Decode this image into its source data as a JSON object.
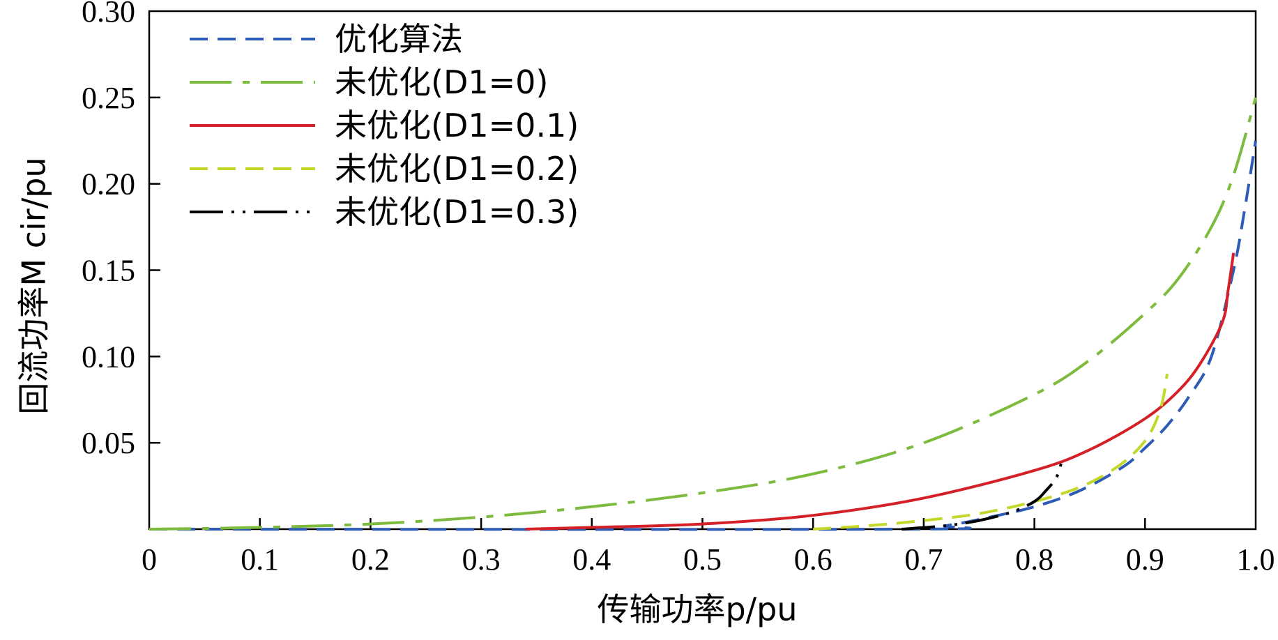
{
  "chart_data": {
    "type": "line",
    "xlabel": "传输功率p/pu",
    "ylabel": "回流功率M cir/pu",
    "xlim": [
      0,
      1.0
    ],
    "ylim": [
      0,
      0.3
    ],
    "x_ticks": [
      "0",
      "0.1",
      "0.2",
      "0.3",
      "0.4",
      "0.5",
      "0.6",
      "0.7",
      "0.8",
      "0.9",
      "1.0"
    ],
    "y_ticks": [
      "0.05",
      "0.10",
      "0.15",
      "0.20",
      "0.25",
      "0.30"
    ],
    "grid": false,
    "legend_position": "top-left",
    "series": [
      {
        "name": "优化算法",
        "color": "#2e5bb5",
        "dash": "dashed",
        "x": [
          0,
          0.68,
          0.72,
          0.76,
          0.8,
          0.84,
          0.88,
          0.9,
          0.92,
          0.94,
          0.96,
          0.98,
          0.99,
          1.0
        ],
        "y": [
          0,
          0,
          0.002,
          0.007,
          0.013,
          0.022,
          0.036,
          0.047,
          0.06,
          0.077,
          0.1,
          0.15,
          0.185,
          0.225
        ]
      },
      {
        "name": "未优化(D1=0)",
        "color": "#7dbb3e",
        "dash": "dashdot",
        "x": [
          0,
          0.1,
          0.2,
          0.3,
          0.4,
          0.5,
          0.6,
          0.7,
          0.8,
          0.85,
          0.9,
          0.93,
          0.96,
          0.98,
          1.0
        ],
        "y": [
          0,
          0.001,
          0.003,
          0.007,
          0.013,
          0.021,
          0.032,
          0.05,
          0.078,
          0.098,
          0.125,
          0.145,
          0.175,
          0.205,
          0.25
        ]
      },
      {
        "name": "未优化(D1=0.1)",
        "color": "#d42127",
        "dash": "solid",
        "x": [
          0.34,
          0.4,
          0.5,
          0.6,
          0.7,
          0.8,
          0.85,
          0.9,
          0.93,
          0.95,
          0.97,
          0.975,
          0.98
        ],
        "y": [
          0,
          0.001,
          0.003,
          0.008,
          0.018,
          0.034,
          0.046,
          0.064,
          0.08,
          0.096,
          0.12,
          0.138,
          0.16
        ]
      },
      {
        "name": "未优化(D1=0.2)",
        "color": "#c3d82b",
        "dash": "dashed",
        "x": [
          0.6,
          0.65,
          0.7,
          0.75,
          0.8,
          0.84,
          0.87,
          0.89,
          0.905,
          0.915,
          0.92
        ],
        "y": [
          0,
          0.002,
          0.005,
          0.009,
          0.016,
          0.024,
          0.034,
          0.044,
          0.056,
          0.072,
          0.09
        ]
      },
      {
        "name": "未优化(D1=0.3)",
        "color": "#000000",
        "dash": "dashdotdot",
        "x": [
          0.68,
          0.72,
          0.75,
          0.78,
          0.8,
          0.81,
          0.82,
          0.825
        ],
        "y": [
          0,
          0.002,
          0.005,
          0.01,
          0.016,
          0.022,
          0.03,
          0.04
        ]
      }
    ]
  }
}
